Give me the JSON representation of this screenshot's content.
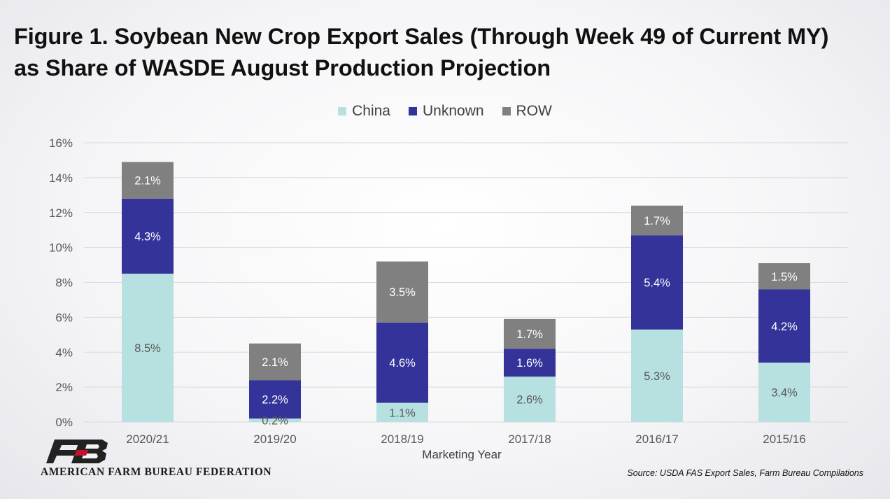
{
  "title_line1": "Figure 1. Soybean New Crop Export Sales (Through Week 49 of Current MY)",
  "title_line2": "as Share of WASDE August Production Projection",
  "source": "Source: USDA FAS Export Sales, Farm Bureau Compilations",
  "logo": {
    "name": "AMERICAN FARM BUREAU FEDERATION",
    "mark": "FB"
  },
  "colors": {
    "China": "#b7e0e0",
    "Unknown": "#333399",
    "ROW": "#808080",
    "grid": "#d9d9d9",
    "axis_text": "#595959"
  },
  "chart_data": {
    "type": "bar",
    "stacked": true,
    "categories": [
      "2020/21",
      "2019/20",
      "2018/19",
      "2017/18",
      "2016/17",
      "2015/16"
    ],
    "series": [
      {
        "name": "China",
        "values": [
          8.5,
          0.2,
          1.1,
          2.6,
          5.3,
          3.4
        ],
        "labels": [
          "8.5%",
          "0.2%",
          "1.1%",
          "2.6%",
          "5.3%",
          "3.4%"
        ]
      },
      {
        "name": "Unknown",
        "values": [
          4.3,
          2.2,
          4.6,
          1.6,
          5.4,
          4.2
        ],
        "labels": [
          "4.3%",
          "2.2%",
          "4.6%",
          "1.6%",
          "5.4%",
          "4.2%"
        ]
      },
      {
        "name": "ROW",
        "values": [
          2.1,
          2.1,
          3.5,
          1.7,
          1.7,
          1.5
        ],
        "labels": [
          "2.1%",
          "2.1%",
          "3.5%",
          "1.7%",
          "1.7%",
          "1.5%"
        ]
      }
    ],
    "xlabel": "Marketing Year",
    "ylabel": "",
    "ylim": [
      0,
      16
    ],
    "yticks": [
      "0%",
      "2%",
      "4%",
      "6%",
      "8%",
      "10%",
      "12%",
      "14%",
      "16%"
    ],
    "grid": true,
    "legend_position": "top-center"
  }
}
